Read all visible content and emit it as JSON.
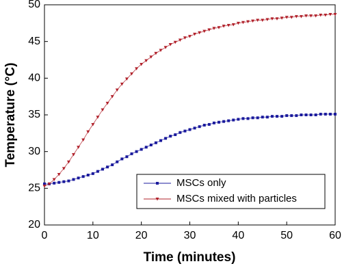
{
  "chart_data": {
    "type": "line",
    "xlabel": "Time (minutes)",
    "ylabel": "Temperature (°C)",
    "x": [
      0,
      1,
      2,
      3,
      4,
      5,
      6,
      7,
      8,
      9,
      10,
      11,
      12,
      13,
      14,
      15,
      16,
      17,
      18,
      19,
      20,
      21,
      22,
      23,
      24,
      25,
      26,
      27,
      28,
      29,
      30,
      31,
      32,
      33,
      34,
      35,
      36,
      37,
      38,
      39,
      40,
      41,
      42,
      43,
      44,
      45,
      46,
      47,
      48,
      49,
      50,
      51,
      52,
      53,
      54,
      55,
      56,
      57,
      58,
      59,
      60
    ],
    "series": [
      {
        "name": "MSCs only",
        "color": "#1a1a9c",
        "marker": "square",
        "values": [
          25.6,
          25.6,
          25.7,
          25.8,
          25.9,
          26.0,
          26.2,
          26.4,
          26.6,
          26.8,
          27.0,
          27.3,
          27.6,
          27.9,
          28.2,
          28.6,
          29.0,
          29.3,
          29.7,
          30.0,
          30.3,
          30.6,
          30.9,
          31.2,
          31.5,
          31.8,
          32.1,
          32.3,
          32.6,
          32.8,
          33.0,
          33.2,
          33.4,
          33.6,
          33.7,
          33.9,
          34.0,
          34.1,
          34.2,
          34.3,
          34.4,
          34.5,
          34.5,
          34.6,
          34.6,
          34.7,
          34.7,
          34.8,
          34.8,
          34.8,
          34.9,
          34.9,
          34.9,
          35.0,
          35.0,
          35.0,
          35.0,
          35.1,
          35.1,
          35.1,
          35.1
        ]
      },
      {
        "name": "MSCs mixed with particles",
        "color": "#b0202a",
        "marker": "triangle-down",
        "values": [
          25.3,
          25.6,
          26.2,
          26.9,
          27.7,
          28.6,
          29.6,
          30.6,
          31.6,
          32.7,
          33.7,
          34.7,
          35.7,
          36.6,
          37.5,
          38.4,
          39.2,
          39.9,
          40.6,
          41.3,
          41.9,
          42.4,
          42.9,
          43.4,
          43.8,
          44.2,
          44.6,
          44.9,
          45.2,
          45.5,
          45.7,
          46.0,
          46.2,
          46.4,
          46.6,
          46.8,
          46.9,
          47.1,
          47.2,
          47.3,
          47.5,
          47.6,
          47.7,
          47.8,
          47.9,
          47.9,
          48.0,
          48.1,
          48.1,
          48.2,
          48.3,
          48.3,
          48.4,
          48.4,
          48.5,
          48.5,
          48.5,
          48.6,
          48.6,
          48.7,
          48.7
        ]
      }
    ],
    "xlim": [
      0,
      60
    ],
    "xticks": [
      0,
      10,
      20,
      30,
      40,
      50,
      60
    ],
    "ylim": [
      20,
      50
    ],
    "yticks": [
      20,
      25,
      30,
      35,
      40,
      45,
      50
    ],
    "grid": false,
    "legend": "lower right"
  }
}
